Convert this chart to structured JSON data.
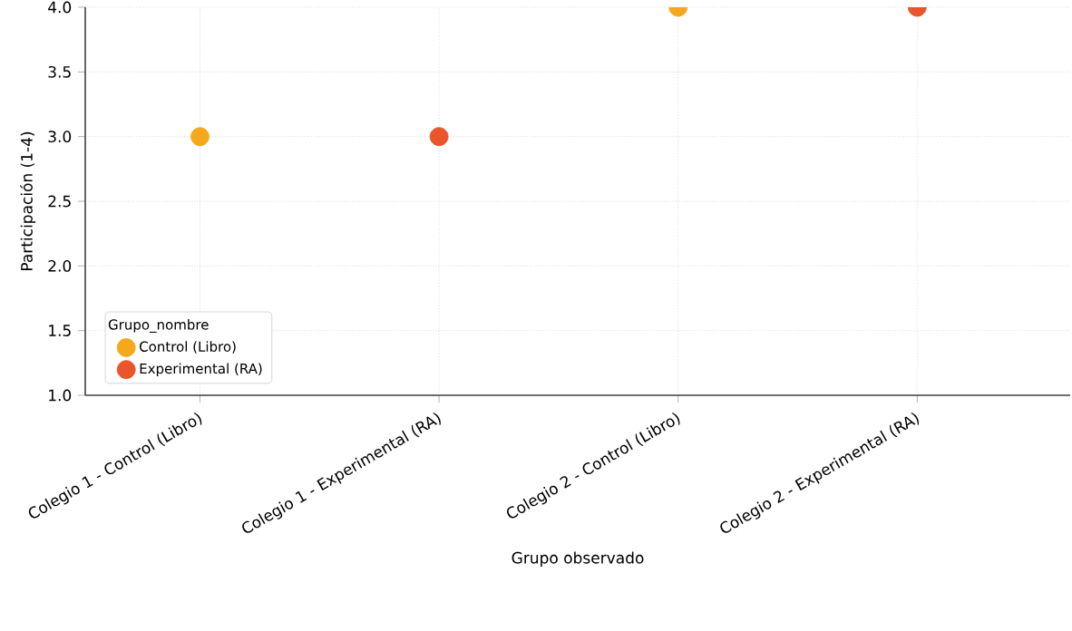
{
  "chart_data": {
    "type": "scatter",
    "xlabel": "Grupo observado",
    "ylabel": "Participación (1-4)",
    "legend_title": "Grupo_nombre",
    "categories": [
      "Colegio 1 - Control (Libro)",
      "Colegio 1 - Experimental (RA)",
      "Colegio 2 - Control (Libro)",
      "Colegio 2 - Experimental (RA)"
    ],
    "series": [
      {
        "name": "Control (Libro)",
        "color": "#f5a81c",
        "values": [
          3,
          null,
          4,
          null
        ]
      },
      {
        "name": "Experimental (RA)",
        "color": "#e9562b",
        "values": [
          null,
          3,
          null,
          4
        ]
      }
    ],
    "ylim": [
      1,
      4
    ],
    "yticks": [
      {
        "value": 1,
        "label": "1.0"
      },
      {
        "value": 1.5,
        "label": "1.5"
      },
      {
        "value": 2,
        "label": "2.0"
      },
      {
        "value": 2.5,
        "label": "2.5"
      },
      {
        "value": 3,
        "label": "3.0"
      },
      {
        "value": 3.5,
        "label": "3.5"
      },
      {
        "value": 4,
        "label": "4.0"
      }
    ],
    "grid": true,
    "legend": "bottom left",
    "marker": "circle"
  }
}
